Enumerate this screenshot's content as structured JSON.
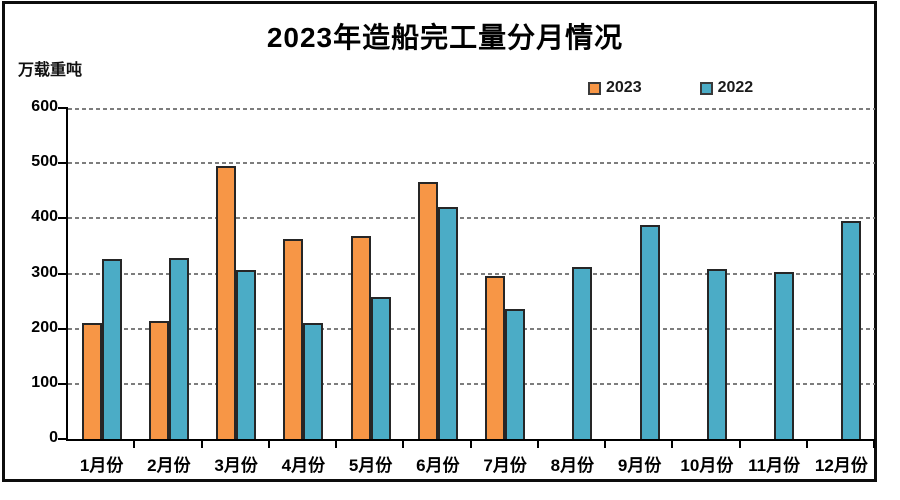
{
  "chart_data": {
    "type": "bar",
    "title": "2023年造船完工量分月情况",
    "unit_label": "万载重吨",
    "categories": [
      "1月份",
      "2月份",
      "3月份",
      "4月份",
      "5月份",
      "6月份",
      "7月份",
      "8月份",
      "9月份",
      "10月份",
      "11月份",
      "12月份"
    ],
    "series": [
      {
        "name": "2023",
        "color": "#F79646",
        "values": [
          211,
          214,
          494,
          363,
          368,
          466,
          296,
          null,
          null,
          null,
          null,
          null
        ]
      },
      {
        "name": "2022",
        "color": "#4BACC6",
        "values": [
          327,
          329,
          307,
          211,
          258,
          421,
          235,
          311,
          388,
          308,
          303,
          396
        ]
      }
    ],
    "ylim": [
      0,
      600
    ],
    "y_ticks": [
      0,
      100,
      200,
      300,
      400,
      500,
      600
    ],
    "grid": "horizontal-dotted",
    "legend_position": "top-right",
    "xlabel": "",
    "ylabel": "万载重吨",
    "colors": {
      "bar_border": "#262626",
      "gridline": "#7d7d7d",
      "axis": "#000000",
      "frame_border": "#0d0d0d",
      "background": "#ffffff"
    }
  }
}
